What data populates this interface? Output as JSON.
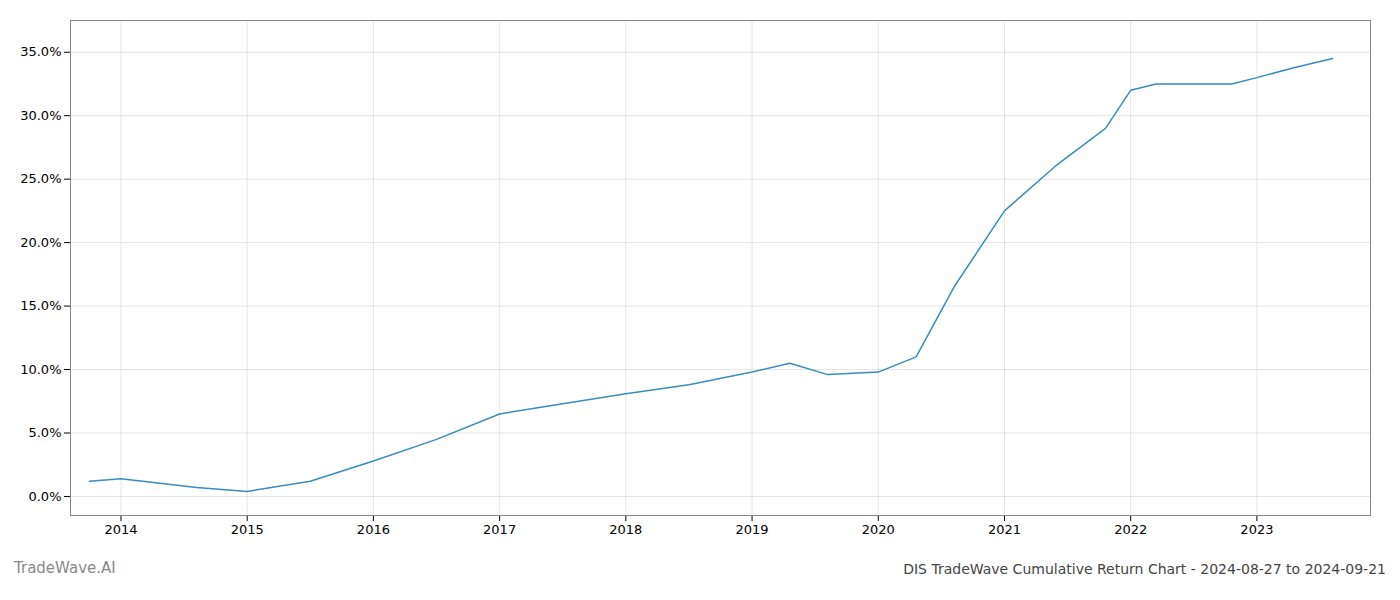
{
  "chart_data": {
    "type": "line",
    "title": "DIS TradeWave Cumulative Return Chart - 2024-08-27 to 2024-09-21",
    "annotations": [
      "TradeWave.AI"
    ],
    "x": [
      2013.75,
      2014.0,
      2014.6,
      2015.0,
      2015.5,
      2016.0,
      2016.5,
      2017.0,
      2017.5,
      2018.0,
      2018.5,
      2019.0,
      2019.3,
      2019.6,
      2020.0,
      2020.3,
      2020.6,
      2021.0,
      2021.4,
      2021.8,
      2022.0,
      2022.2,
      2022.5,
      2022.8,
      2023.0,
      2023.3,
      2023.6
    ],
    "values": [
      1.2,
      1.4,
      0.7,
      0.4,
      1.2,
      2.8,
      4.5,
      6.5,
      7.3,
      8.1,
      8.8,
      9.8,
      10.5,
      9.6,
      9.8,
      11.0,
      16.5,
      22.5,
      26.0,
      29.0,
      32.0,
      32.5,
      32.5,
      32.5,
      33.0,
      33.8,
      34.5
    ],
    "color": "#3a8bbf",
    "xlim": [
      2013.6,
      2023.9
    ],
    "xticks": [
      2014,
      2015,
      2016,
      2017,
      2018,
      2019,
      2020,
      2021,
      2022,
      2023
    ],
    "ylim": [
      -1.5,
      37.5
    ],
    "yticks": [
      {
        "value": 0.0,
        "label": "0.0%"
      },
      {
        "value": 5.0,
        "label": "5.0%"
      },
      {
        "value": 10.0,
        "label": "10.0%"
      },
      {
        "value": 15.0,
        "label": "15.0%"
      },
      {
        "value": 20.0,
        "label": "20.0%"
      },
      {
        "value": 25.0,
        "label": "25.0%"
      },
      {
        "value": 30.0,
        "label": "30.0%"
      },
      {
        "value": 35.0,
        "label": "35.0%"
      }
    ],
    "grid": true
  }
}
